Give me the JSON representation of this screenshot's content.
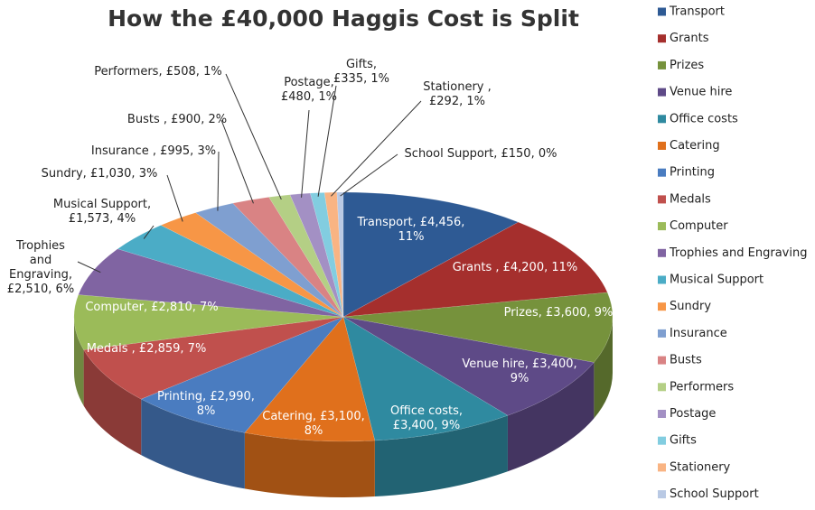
{
  "chart_data": {
    "type": "pie3d",
    "title": "How the £40,000 Haggis Cost is Split",
    "categories": [
      "Transport",
      "Grants",
      "Prizes",
      "Venue hire",
      "Office costs",
      "Catering",
      "Printing",
      "Medals",
      "Computer",
      "Trophies and Engraving",
      "Musical Support",
      "Sundry",
      "Insurance",
      "Busts",
      "Performers",
      "Postage",
      "Gifts",
      "Stationery",
      "School Support"
    ],
    "values": [
      4456,
      4200,
      3600,
      3400,
      3400,
      3100,
      2990,
      2859,
      2810,
      2510,
      1573,
      1030,
      995,
      900,
      508,
      480,
      335,
      292,
      150
    ],
    "value_labels": [
      "Transport, £4,456, 11%",
      "Grants , £4,200, 11%",
      "Prizes, £3,600, 9%",
      "Venue hire, £3,400, 9%",
      "Office costs, £3,400, 9%",
      "Catering, £3,100, 8%",
      "Printing, £2,990, 8%",
      "Medals , £2,859, 7%",
      "Computer, £2,810, 7%",
      "Trophies and Engraving, £2,510, 6%",
      "Musical Support, £1,573, 4%",
      "Sundry, £1,030, 3%",
      "Insurance , £995, 3%",
      "Busts , £900, 2%",
      "Performers, £508, 1%",
      "Postage, £480, 1%",
      "Gifts, £335, 1%",
      "Stationery , £292, 1%",
      "School Support, £150, 0%"
    ],
    "colors": [
      "#2e5a94",
      "#a52f2d",
      "#76923c",
      "#5e4a87",
      "#2f8aa0",
      "#e0701c",
      "#4a7cc0",
      "#c0504d",
      "#9bbb59",
      "#8064a2",
      "#4bacc6",
      "#f79646",
      "#7f9fd0",
      "#d98384",
      "#b4cf85",
      "#a390c4",
      "#82cde0",
      "#f9b483",
      "#b9c9e4"
    ],
    "legend": "right"
  }
}
